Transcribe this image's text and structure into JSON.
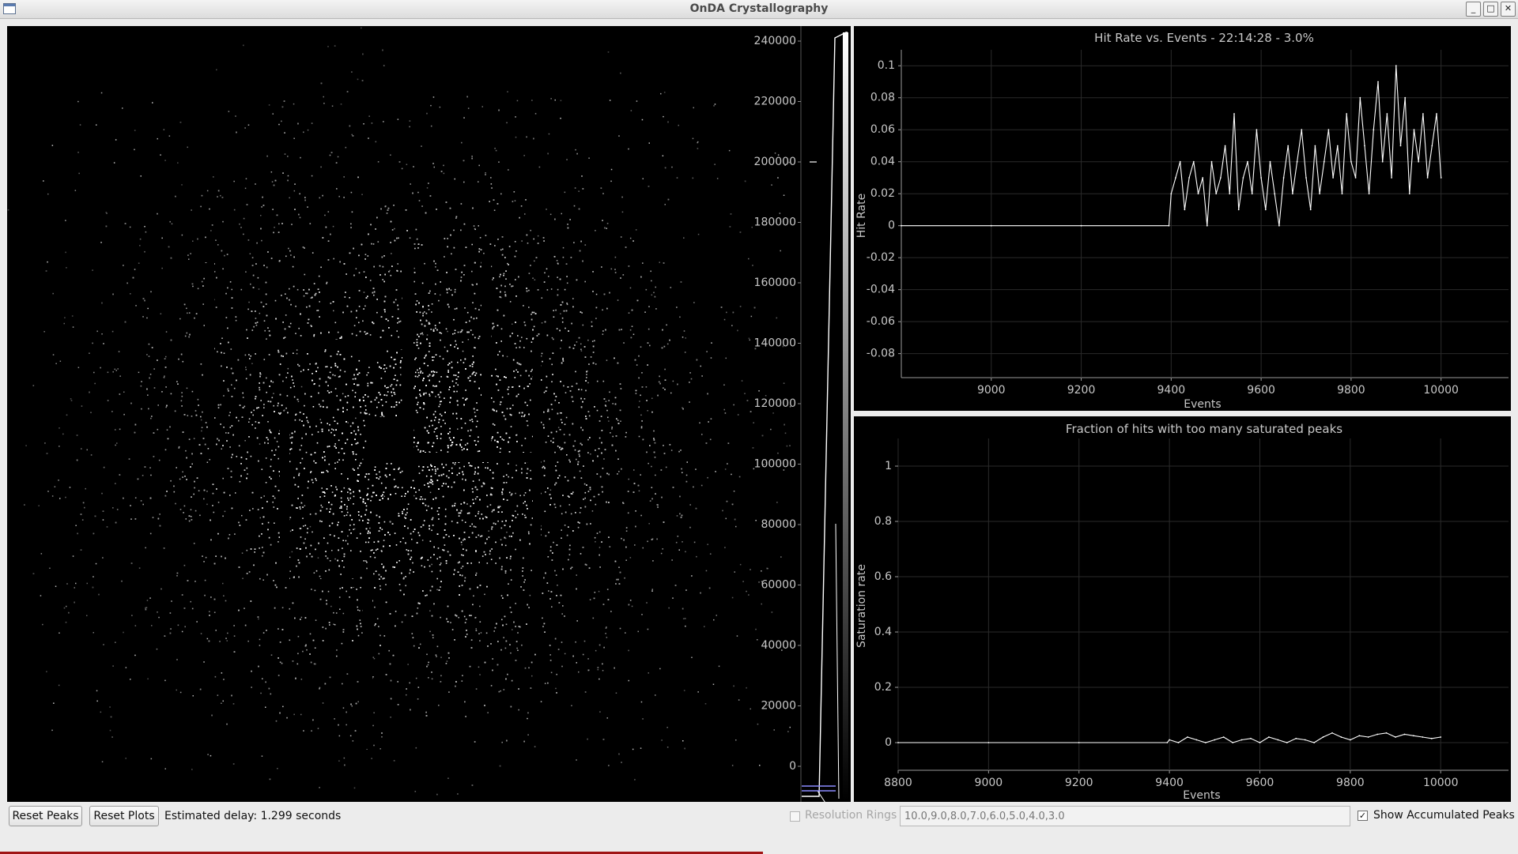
{
  "window": {
    "title": "OnDA Crystallography",
    "buttons": {
      "minimize": "_",
      "maximize": "□",
      "close": "✕"
    }
  },
  "histogram": {
    "ticks": [
      "240000",
      "220000",
      "200000",
      "180000",
      "160000",
      "140000",
      "120000",
      "100000",
      "80000",
      "60000",
      "40000",
      "20000",
      "0"
    ]
  },
  "plot1": {
    "title": "Hit Rate vs. Events - 22:14:28 - 3.0%",
    "xlabel": "Events",
    "ylabel": "Hit Rate",
    "xticks": [
      "9000",
      "9200",
      "9400",
      "9600",
      "9800",
      "10000"
    ],
    "yticks": [
      "0.1",
      "0.08",
      "0.06",
      "0.04",
      "0.02",
      "0",
      "-0.02",
      "-0.04",
      "-0.06",
      "-0.08"
    ]
  },
  "plot2": {
    "title": "Fraction of hits with too many saturated peaks",
    "xlabel": "Events",
    "ylabel": "Saturation rate",
    "xticks": [
      "8800",
      "9000",
      "9200",
      "9400",
      "9600",
      "9800",
      "10000"
    ],
    "yticks": [
      "1",
      "0.8",
      "0.6",
      "0.4",
      "0.2",
      "0"
    ]
  },
  "chart_data": [
    {
      "type": "line",
      "title": "Hit Rate vs. Events - 22:14:28 - 3.0%",
      "xlabel": "Events",
      "ylabel": "Hit Rate",
      "xlim": [
        8800,
        10150
      ],
      "ylim": [
        -0.095,
        0.11
      ],
      "grid": true,
      "series": [
        {
          "x": [
            8800,
            9000,
            9200,
            9395,
            9400,
            9410,
            9420,
            9430,
            9440,
            9450,
            9460,
            9470,
            9480,
            9490,
            9500,
            9510,
            9520,
            9530,
            9540,
            9550,
            9560,
            9570,
            9580,
            9590,
            9600,
            9610,
            9620,
            9630,
            9640,
            9650,
            9660,
            9670,
            9680,
            9690,
            9700,
            9710,
            9720,
            9730,
            9740,
            9750,
            9760,
            9770,
            9780,
            9790,
            9800,
            9810,
            9820,
            9830,
            9840,
            9850,
            9860,
            9870,
            9880,
            9890,
            9900,
            9910,
            9920,
            9930,
            9940,
            9950,
            9960,
            9970,
            9980,
            9990,
            10000
          ],
          "values": [
            0,
            0,
            0,
            0,
            0.02,
            0.03,
            0.04,
            0.01,
            0.03,
            0.04,
            0.02,
            0.03,
            0.0,
            0.04,
            0.02,
            0.03,
            0.05,
            0.02,
            0.07,
            0.01,
            0.03,
            0.04,
            0.02,
            0.06,
            0.03,
            0.01,
            0.04,
            0.02,
            0.0,
            0.03,
            0.05,
            0.02,
            0.04,
            0.06,
            0.03,
            0.01,
            0.05,
            0.02,
            0.04,
            0.06,
            0.03,
            0.05,
            0.02,
            0.07,
            0.04,
            0.03,
            0.08,
            0.05,
            0.02,
            0.06,
            0.09,
            0.04,
            0.07,
            0.03,
            0.1,
            0.05,
            0.08,
            0.02,
            0.06,
            0.04,
            0.07,
            0.03,
            0.05,
            0.07,
            0.03
          ]
        }
      ]
    },
    {
      "type": "line",
      "title": "Fraction of hits with too many saturated peaks",
      "xlabel": "Events",
      "ylabel": "Saturation rate",
      "xlim": [
        8800,
        10150
      ],
      "ylim": [
        -0.1,
        1.1
      ],
      "grid": true,
      "series": [
        {
          "x": [
            8800,
            9000,
            9200,
            9395,
            9400,
            9420,
            9440,
            9460,
            9480,
            9500,
            9520,
            9540,
            9560,
            9580,
            9600,
            9620,
            9640,
            9660,
            9680,
            9700,
            9720,
            9740,
            9760,
            9780,
            9800,
            9820,
            9840,
            9860,
            9880,
            9900,
            9920,
            9940,
            9960,
            9980,
            10000
          ],
          "values": [
            0,
            0,
            0,
            0,
            0.01,
            0.0,
            0.02,
            0.01,
            0.0,
            0.01,
            0.02,
            0.0,
            0.01,
            0.015,
            0.0,
            0.02,
            0.01,
            0.0,
            0.015,
            0.01,
            0.0,
            0.02,
            0.035,
            0.02,
            0.01,
            0.025,
            0.02,
            0.03,
            0.035,
            0.02,
            0.03,
            0.025,
            0.02,
            0.015,
            0.02
          ]
        }
      ]
    }
  ],
  "controls": {
    "reset_peaks": "Reset Peaks",
    "reset_plots": "Reset Plots",
    "delay": "Estimated delay: 1.299 seconds",
    "rings_label": "Resolution Rings",
    "rings_value": "10.0,9.0,8.0,7.0,6.0,5.0,4.0,3.0",
    "rings_checked": false,
    "show_peaks_label": "Show Accumulated Peaks",
    "show_peaks_checked": true,
    "check_mark": "✓"
  }
}
